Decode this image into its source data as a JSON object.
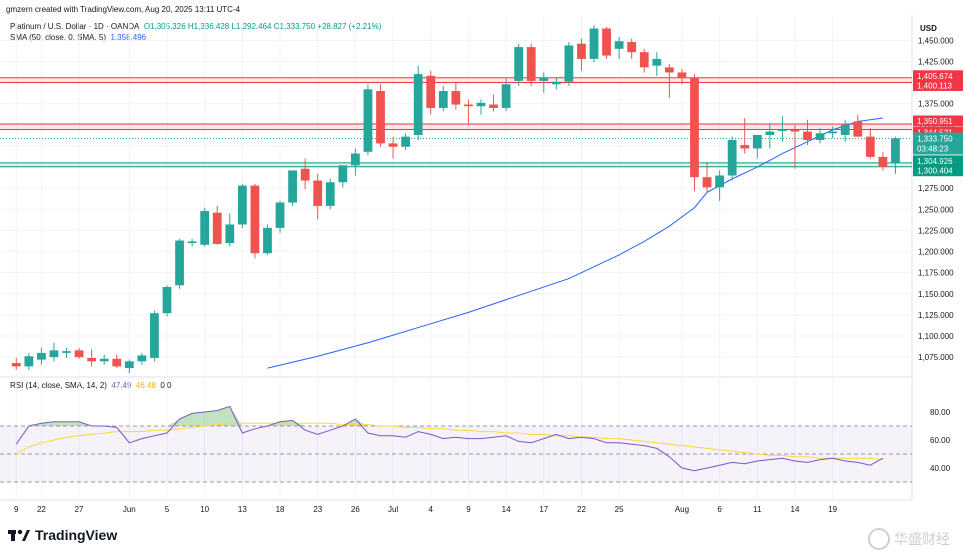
{
  "header": {
    "author_line": "gmzern created with TradingView.com, Aug 20, 2025 13:11 UTC-4"
  },
  "legend": {
    "symbol": "Platinum / U.S. Dollar · 1D · OANDA",
    "ohlc": "O1,305.326  H1,336.428  L1,292.464  C1,333.750  +28.827 (+2.21%)",
    "sma_label": "SMA (50, close, 0, SMA, 5)",
    "sma_value": "1,358.496",
    "rsi_label": "RSI (14, close, SMA, 14, 2)",
    "rsi_value": "47.49",
    "rsi_ma_value": "46.48",
    "rsi_extra": "0  0"
  },
  "brand": {
    "logo_text": "TradingView",
    "watermark": "华盛财经"
  },
  "colors": {
    "up": "#26a69a",
    "down": "#ef5350",
    "sma": "#2962ff",
    "rsi": "#7e57c2",
    "rsi_ma": "#fdd835",
    "res_zone": "#f23645",
    "sup_zone": "#089981"
  },
  "chart_data": {
    "type": "candlestick",
    "currency": "USD",
    "price_ticks": [
      "1,450.000",
      "1,425.000",
      "1,400.000",
      "1,375.000",
      "1,350.000",
      "1,325.000",
      "1,300.000",
      "1,275.000",
      "1,250.000",
      "1,225.000",
      "1,200.000",
      "1,175.000",
      "1,150.000",
      "1,125.000",
      "1,100.000",
      "1,075.000"
    ],
    "price_range": [
      1055,
      1480
    ],
    "x_ticks": [
      {
        "label": "9",
        "i": 0
      },
      {
        "label": "22",
        "i": 2
      },
      {
        "label": "27",
        "i": 5
      },
      {
        "label": "Jun",
        "i": 9
      },
      {
        "label": "5",
        "i": 12
      },
      {
        "label": "10",
        "i": 15
      },
      {
        "label": "13",
        "i": 18
      },
      {
        "label": "18",
        "i": 21
      },
      {
        "label": "23",
        "i": 24
      },
      {
        "label": "26",
        "i": 27
      },
      {
        "label": "Jul",
        "i": 30
      },
      {
        "label": "4",
        "i": 33
      },
      {
        "label": "9",
        "i": 36
      },
      {
        "label": "14",
        "i": 39
      },
      {
        "label": "17",
        "i": 42
      },
      {
        "label": "22",
        "i": 45
      },
      {
        "label": "25",
        "i": 48
      },
      {
        "label": "Aug",
        "i": 53
      },
      {
        "label": "6",
        "i": 56
      },
      {
        "label": "11",
        "i": 59
      },
      {
        "label": "14",
        "i": 62
      },
      {
        "label": "19",
        "i": 65
      }
    ],
    "candles": [
      {
        "o": 1068,
        "h": 1074,
        "l": 1060,
        "c": 1064
      },
      {
        "o": 1064,
        "h": 1080,
        "l": 1060,
        "c": 1076
      },
      {
        "o": 1072,
        "h": 1086,
        "l": 1066,
        "c": 1080
      },
      {
        "o": 1075,
        "h": 1092,
        "l": 1070,
        "c": 1083
      },
      {
        "o": 1080,
        "h": 1086,
        "l": 1074,
        "c": 1082
      },
      {
        "o": 1083,
        "h": 1086,
        "l": 1073,
        "c": 1075
      },
      {
        "o": 1074,
        "h": 1084,
        "l": 1064,
        "c": 1070
      },
      {
        "o": 1070,
        "h": 1078,
        "l": 1066,
        "c": 1073
      },
      {
        "o": 1073,
        "h": 1078,
        "l": 1062,
        "c": 1064
      },
      {
        "o": 1062,
        "h": 1072,
        "l": 1056,
        "c": 1070
      },
      {
        "o": 1070,
        "h": 1080,
        "l": 1066,
        "c": 1077
      },
      {
        "o": 1074,
        "h": 1130,
        "l": 1070,
        "c": 1127
      },
      {
        "o": 1127,
        "h": 1160,
        "l": 1123,
        "c": 1158
      },
      {
        "o": 1160,
        "h": 1215,
        "l": 1156,
        "c": 1213
      },
      {
        "o": 1210,
        "h": 1215,
        "l": 1206,
        "c": 1212
      },
      {
        "o": 1208,
        "h": 1252,
        "l": 1206,
        "c": 1248
      },
      {
        "o": 1246,
        "h": 1254,
        "l": 1208,
        "c": 1209
      },
      {
        "o": 1210,
        "h": 1245,
        "l": 1206,
        "c": 1232
      },
      {
        "o": 1232,
        "h": 1280,
        "l": 1228,
        "c": 1278
      },
      {
        "o": 1278,
        "h": 1280,
        "l": 1192,
        "c": 1198
      },
      {
        "o": 1198,
        "h": 1232,
        "l": 1196,
        "c": 1228
      },
      {
        "o": 1228,
        "h": 1260,
        "l": 1222,
        "c": 1258
      },
      {
        "o": 1258,
        "h": 1296,
        "l": 1254,
        "c": 1296
      },
      {
        "o": 1298,
        "h": 1310,
        "l": 1274,
        "c": 1284
      },
      {
        "o": 1284,
        "h": 1292,
        "l": 1238,
        "c": 1254
      },
      {
        "o": 1254,
        "h": 1286,
        "l": 1250,
        "c": 1282
      },
      {
        "o": 1282,
        "h": 1302,
        "l": 1276,
        "c": 1302
      },
      {
        "o": 1302,
        "h": 1322,
        "l": 1290,
        "c": 1316
      },
      {
        "o": 1318,
        "h": 1398,
        "l": 1314,
        "c": 1392
      },
      {
        "o": 1390,
        "h": 1398,
        "l": 1324,
        "c": 1328
      },
      {
        "o": 1328,
        "h": 1336,
        "l": 1310,
        "c": 1324
      },
      {
        "o": 1324,
        "h": 1340,
        "l": 1320,
        "c": 1336
      },
      {
        "o": 1338,
        "h": 1420,
        "l": 1332,
        "c": 1410
      },
      {
        "o": 1408,
        "h": 1414,
        "l": 1362,
        "c": 1370
      },
      {
        "o": 1370,
        "h": 1396,
        "l": 1366,
        "c": 1390
      },
      {
        "o": 1390,
        "h": 1400,
        "l": 1368,
        "c": 1374
      },
      {
        "o": 1374,
        "h": 1380,
        "l": 1350,
        "c": 1372
      },
      {
        "o": 1372,
        "h": 1380,
        "l": 1362,
        "c": 1376
      },
      {
        "o": 1374,
        "h": 1386,
        "l": 1366,
        "c": 1370
      },
      {
        "o": 1370,
        "h": 1405,
        "l": 1366,
        "c": 1398
      },
      {
        "o": 1402,
        "h": 1446,
        "l": 1396,
        "c": 1442
      },
      {
        "o": 1442,
        "h": 1446,
        "l": 1396,
        "c": 1402
      },
      {
        "o": 1402,
        "h": 1412,
        "l": 1388,
        "c": 1406
      },
      {
        "o": 1398,
        "h": 1406,
        "l": 1392,
        "c": 1401
      },
      {
        "o": 1401,
        "h": 1448,
        "l": 1396,
        "c": 1444
      },
      {
        "o": 1446,
        "h": 1452,
        "l": 1414,
        "c": 1428
      },
      {
        "o": 1428,
        "h": 1468,
        "l": 1424,
        "c": 1464
      },
      {
        "o": 1464,
        "h": 1466,
        "l": 1428,
        "c": 1432
      },
      {
        "o": 1440,
        "h": 1454,
        "l": 1428,
        "c": 1449
      },
      {
        "o": 1448,
        "h": 1452,
        "l": 1428,
        "c": 1436
      },
      {
        "o": 1436,
        "h": 1440,
        "l": 1412,
        "c": 1418
      },
      {
        "o": 1420,
        "h": 1436,
        "l": 1408,
        "c": 1428
      },
      {
        "o": 1418,
        "h": 1422,
        "l": 1382,
        "c": 1412
      },
      {
        "o": 1412,
        "h": 1416,
        "l": 1398,
        "c": 1406
      },
      {
        "o": 1406,
        "h": 1410,
        "l": 1272,
        "c": 1288
      },
      {
        "o": 1288,
        "h": 1306,
        "l": 1270,
        "c": 1276
      },
      {
        "o": 1276,
        "h": 1296,
        "l": 1260,
        "c": 1290
      },
      {
        "o": 1290,
        "h": 1336,
        "l": 1284,
        "c": 1332
      },
      {
        "o": 1326,
        "h": 1358,
        "l": 1316,
        "c": 1322
      },
      {
        "o": 1322,
        "h": 1336,
        "l": 1310,
        "c": 1338
      },
      {
        "o": 1338,
        "h": 1352,
        "l": 1322,
        "c": 1342
      },
      {
        "o": 1344,
        "h": 1360,
        "l": 1330,
        "c": 1344
      },
      {
        "o": 1344,
        "h": 1350,
        "l": 1298,
        "c": 1342
      },
      {
        "o": 1342,
        "h": 1356,
        "l": 1326,
        "c": 1332
      },
      {
        "o": 1332,
        "h": 1346,
        "l": 1328,
        "c": 1340
      },
      {
        "o": 1340,
        "h": 1348,
        "l": 1334,
        "c": 1342
      },
      {
        "o": 1338,
        "h": 1356,
        "l": 1330,
        "c": 1350
      },
      {
        "o": 1354,
        "h": 1362,
        "l": 1336,
        "c": 1336
      },
      {
        "o": 1336,
        "h": 1346,
        "l": 1310,
        "c": 1312
      },
      {
        "o": 1312,
        "h": 1318,
        "l": 1296,
        "c": 1300
      },
      {
        "o": 1305,
        "h": 1336,
        "l": 1292,
        "c": 1334
      }
    ],
    "sma": {
      "name": "SMA (50, close, 0, SMA, 5)",
      "points": [
        [
          20,
          1062
        ],
        [
          24,
          1076
        ],
        [
          28,
          1092
        ],
        [
          32,
          1110
        ],
        [
          36,
          1128
        ],
        [
          40,
          1148
        ],
        [
          44,
          1168
        ],
        [
          48,
          1196
        ],
        [
          50,
          1212
        ],
        [
          52,
          1230
        ],
        [
          54,
          1252
        ],
        [
          55,
          1270
        ],
        [
          57,
          1286
        ],
        [
          59,
          1300
        ],
        [
          61,
          1316
        ],
        [
          63,
          1330
        ],
        [
          65,
          1344
        ],
        [
          66,
          1349
        ],
        [
          67,
          1354
        ],
        [
          68,
          1356
        ],
        [
          69,
          1358
        ]
      ]
    },
    "rsi": {
      "name": "RSI (14, close, SMA, 14, 2)",
      "ylim": [
        20,
        100
      ],
      "ticks": [
        "80.00",
        "60.00",
        "40.00"
      ],
      "bands": [
        30,
        70
      ],
      "mid": 50,
      "values": [
        57,
        70,
        72,
        73,
        73,
        73,
        70,
        70,
        69,
        58,
        61,
        63,
        65,
        75,
        79,
        80,
        81,
        84,
        65,
        68,
        70,
        73,
        74,
        67,
        64,
        67,
        70,
        75,
        65,
        63,
        63,
        62,
        66,
        64,
        61,
        62,
        61,
        61,
        62,
        63,
        59,
        58,
        61,
        64,
        61,
        62,
        61,
        58,
        58,
        57,
        56,
        54,
        48,
        40,
        38,
        40,
        42,
        44,
        43,
        45,
        46,
        47,
        45,
        44,
        46,
        47,
        45,
        44,
        42,
        47
      ],
      "ma_values": [
        50,
        55,
        58,
        60,
        62,
        63,
        64,
        65,
        66,
        66,
        66,
        67,
        67,
        68,
        69,
        70,
        71,
        72,
        72,
        72,
        72,
        72,
        72,
        72,
        72,
        72,
        71,
        71,
        71,
        70,
        70,
        69,
        69,
        68,
        68,
        67,
        67,
        66,
        66,
        65,
        65,
        64,
        64,
        63,
        63,
        62,
        62,
        61,
        61,
        60,
        59,
        58,
        57,
        56,
        55,
        54,
        53,
        52,
        51,
        50,
        49,
        49,
        48,
        48,
        47,
        47,
        47,
        47,
        47,
        46
      ]
    },
    "hlines": [
      {
        "label": "1,405.674",
        "price": 1405.674,
        "color": "#f23645"
      },
      {
        "label": "1,400.113",
        "price": 1400.113,
        "color": "#f23645"
      },
      {
        "label": "1,350.951",
        "price": 1350.951,
        "color": "#f23645"
      },
      {
        "label": "1,344.521",
        "price": 1344.521,
        "color": "#f23645"
      },
      {
        "label": "1,304.926",
        "price": 1304.926,
        "color": "#089981"
      },
      {
        "label": "1,300.404",
        "price": 1300.404,
        "color": "#089981"
      }
    ],
    "last_price": {
      "label": "1,333.750",
      "countdown": "03:48:23",
      "price": 1333.75
    }
  }
}
